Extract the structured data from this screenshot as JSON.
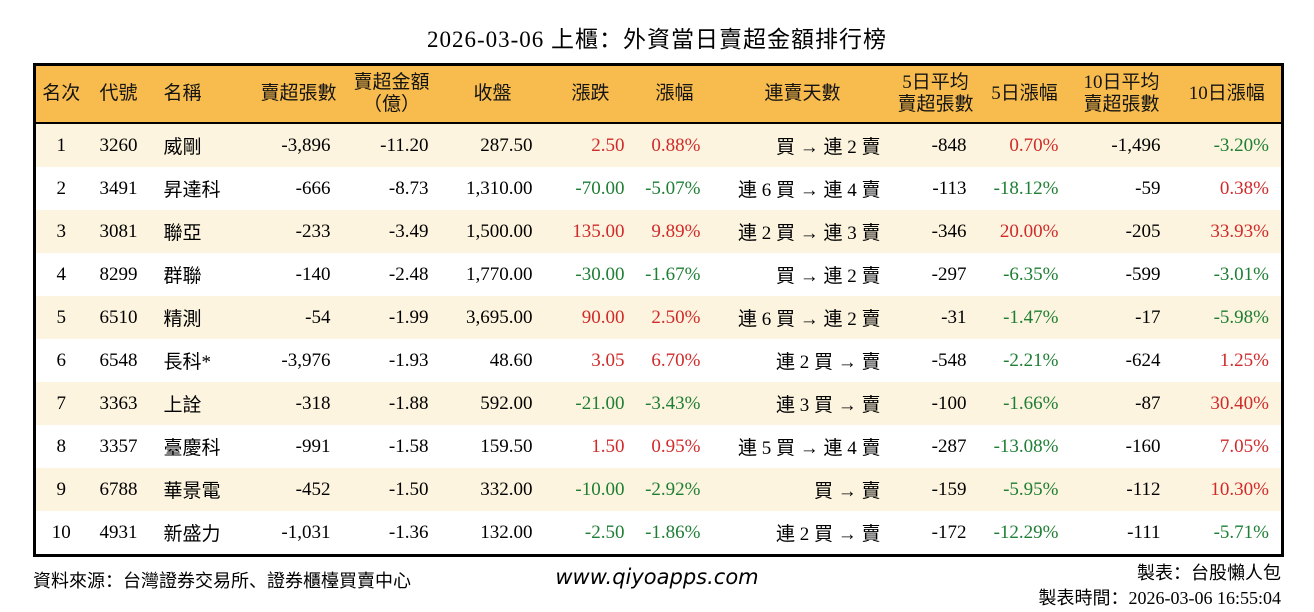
{
  "title": "2026-03-06 上櫃：外資當日賣超金額排行榜",
  "colors": {
    "header_bg": "#f7bc4d",
    "stripe_bg": "#fcf4de",
    "up": "#d02a2a",
    "down": "#1e7e34"
  },
  "chart_data": {
    "type": "table",
    "title": "2026-03-06 上櫃：外資當日賣超金額排行榜",
    "columns": [
      "名次",
      "代號",
      "名稱",
      "賣超張數",
      "賣超金額\n（億）",
      "收盤",
      "漲跌",
      "漲幅",
      "連賣天數",
      "5日平均\n賣超張數",
      "5日漲幅",
      "10日平均\n賣超張數",
      "10日漲幅"
    ],
    "rows": [
      [
        "1",
        "3260",
        "威剛",
        "-3,896",
        "-11.20",
        "287.50",
        "2.50",
        "0.88%",
        "買 → 連 2 賣",
        "-848",
        "0.70%",
        "-1,496",
        "-3.20%"
      ],
      [
        "2",
        "3491",
        "昇達科",
        "-666",
        "-8.73",
        "1,310.00",
        "-70.00",
        "-5.07%",
        "連 6 買 → 連 4 賣",
        "-113",
        "-18.12%",
        "-59",
        "0.38%"
      ],
      [
        "3",
        "3081",
        "聯亞",
        "-233",
        "-3.49",
        "1,500.00",
        "135.00",
        "9.89%",
        "連 2 買 → 連 3 賣",
        "-346",
        "20.00%",
        "-205",
        "33.93%"
      ],
      [
        "4",
        "8299",
        "群聯",
        "-140",
        "-2.48",
        "1,770.00",
        "-30.00",
        "-1.67%",
        "買 → 連 2 賣",
        "-297",
        "-6.35%",
        "-599",
        "-3.01%"
      ],
      [
        "5",
        "6510",
        "精測",
        "-54",
        "-1.99",
        "3,695.00",
        "90.00",
        "2.50%",
        "連 6 買 → 連 2 賣",
        "-31",
        "-1.47%",
        "-17",
        "-5.98%"
      ],
      [
        "6",
        "6548",
        "長科*",
        "-3,976",
        "-1.93",
        "48.60",
        "3.05",
        "6.70%",
        "連 2 買 → 賣",
        "-548",
        "-2.21%",
        "-624",
        "1.25%"
      ],
      [
        "7",
        "3363",
        "上詮",
        "-318",
        "-1.88",
        "592.00",
        "-21.00",
        "-3.43%",
        "連 3 買 → 賣",
        "-100",
        "-1.66%",
        "-87",
        "30.40%"
      ],
      [
        "8",
        "3357",
        "臺慶科",
        "-991",
        "-1.58",
        "159.50",
        "1.50",
        "0.95%",
        "連 5 買 → 連 4 賣",
        "-287",
        "-13.08%",
        "-160",
        "7.05%"
      ],
      [
        "9",
        "6788",
        "華景電",
        "-452",
        "-1.50",
        "332.00",
        "-10.00",
        "-2.92%",
        "買 → 賣",
        "-159",
        "-5.95%",
        "-112",
        "10.30%"
      ],
      [
        "10",
        "4931",
        "新盛力",
        "-1,031",
        "-1.36",
        "132.00",
        "-2.50",
        "-1.86%",
        "連 2 買 → 賣",
        "-172",
        "-12.29%",
        "-111",
        "-5.71%"
      ]
    ],
    "color_convention": "positive values red (up), negative values green (down)",
    "colored_columns": [
      "漲跌",
      "漲幅",
      "5日漲幅",
      "10日漲幅"
    ]
  },
  "footer": {
    "source": "資料來源：台灣證券交易所、證券櫃檯買賣中心",
    "website": "www.qiyoapps.com",
    "made_by": "製表：台股懶人包",
    "made_at": "製表時間：2026-03-06 16:55:04"
  }
}
